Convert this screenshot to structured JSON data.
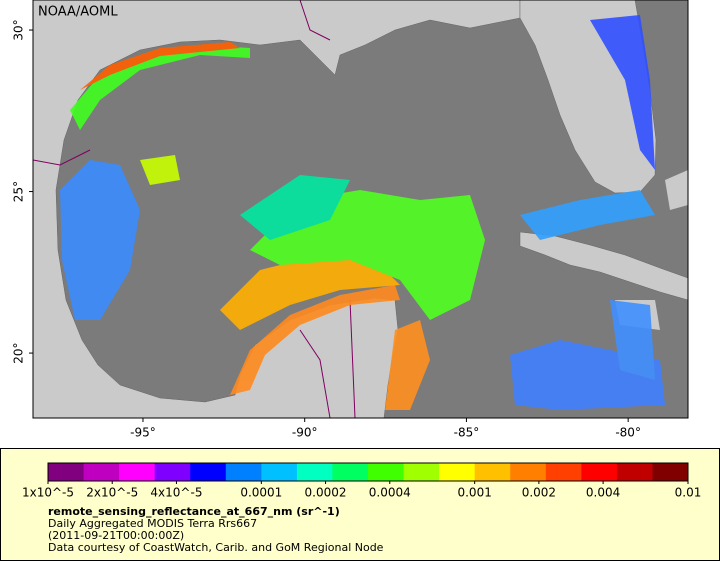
{
  "map": {
    "credit": "NOAA/AOML",
    "lonlim": [
      -98.4,
      -78.15
    ],
    "latlim": [
      17.99,
      30.93
    ],
    "lonticks": [
      {
        "value": -95,
        "label": "-95°"
      },
      {
        "value": -90,
        "label": "-90°"
      },
      {
        "value": -85,
        "label": "-85°"
      },
      {
        "value": -80,
        "label": "-80°"
      }
    ],
    "latticks": [
      {
        "value": 30,
        "label": "30°"
      },
      {
        "value": 25,
        "label": "25°"
      },
      {
        "value": 20,
        "label": "20°"
      }
    ]
  },
  "legend": {
    "colorbar": {
      "log_scale": true,
      "lim": [
        1e-05,
        0.01
      ],
      "colors": [
        "#800080",
        "#c000c0",
        "#ff00ff",
        "#8000ff",
        "#0000ff",
        "#0080ff",
        "#00c0ff",
        "#00ffc0",
        "#00ff60",
        "#40ff00",
        "#a0ff00",
        "#ffff00",
        "#ffc000",
        "#ff8000",
        "#ff4000",
        "#ff0000",
        "#c00000",
        "#800000"
      ],
      "ticks": [
        {
          "value": 1e-05,
          "label": "1x10^-5"
        },
        {
          "value": 2e-05,
          "label": "2x10^-5"
        },
        {
          "value": 4e-05,
          "label": "4x10^-5"
        },
        0.0001,
        0.0002,
        0.0004,
        0.001,
        0.002,
        0.004,
        0.01
      ]
    },
    "variable": "remote_sensing_reflectance_at_667_nm (sr^-1)",
    "description": "Daily Aggregated MODIS Terra Rrs667",
    "time": "(2011-09-21T00:00:00Z)",
    "source": "Data courtesy of CoastWatch, Carib. and GoM Regional Node"
  }
}
